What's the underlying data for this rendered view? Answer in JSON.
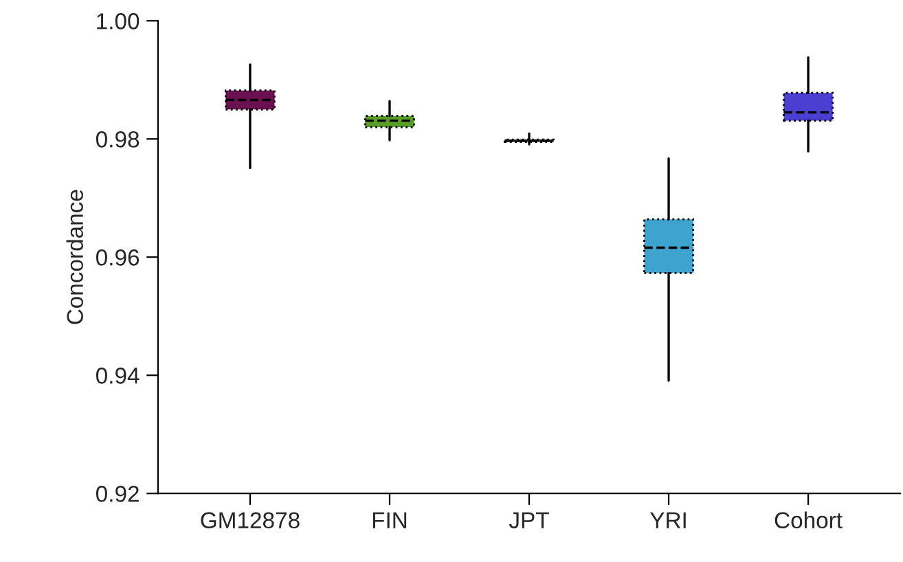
{
  "chart_data": {
    "type": "box",
    "ylabel": "Concordance",
    "categories": [
      "GM12878",
      "FIN",
      "JPT",
      "YRI",
      "Cohort"
    ],
    "boxes": [
      {
        "low": 0.9751,
        "q1": 0.985,
        "median": 0.9866,
        "q3": 0.9882,
        "high": 0.9926
      },
      {
        "low": 0.9798,
        "q1": 0.982,
        "median": 0.9831,
        "q3": 0.9839,
        "high": 0.9864
      },
      {
        "low": 0.9791,
        "q1": 0.9795,
        "median": 0.9797,
        "q3": 0.9799,
        "high": 0.9809
      },
      {
        "low": 0.9391,
        "q1": 0.9573,
        "median": 0.9616,
        "q3": 0.9664,
        "high": 0.9767
      },
      {
        "low": 0.9779,
        "q1": 0.9831,
        "median": 0.9845,
        "q3": 0.9878,
        "high": 0.9938
      }
    ],
    "colors": [
      "#6b1050",
      "#5a9e2a",
      "#222222",
      "#3fa3cf",
      "#4a3fd1"
    ],
    "ylim": [
      0.92,
      1.0
    ],
    "yticks": [
      {
        "value": 0.92,
        "label": "0.92"
      },
      {
        "value": 0.94,
        "label": "0.94"
      },
      {
        "value": 0.96,
        "label": "0.96"
      },
      {
        "value": 0.98,
        "label": "0.98"
      },
      {
        "value": 1.0,
        "label": "1.00"
      }
    ],
    "grid": false
  }
}
